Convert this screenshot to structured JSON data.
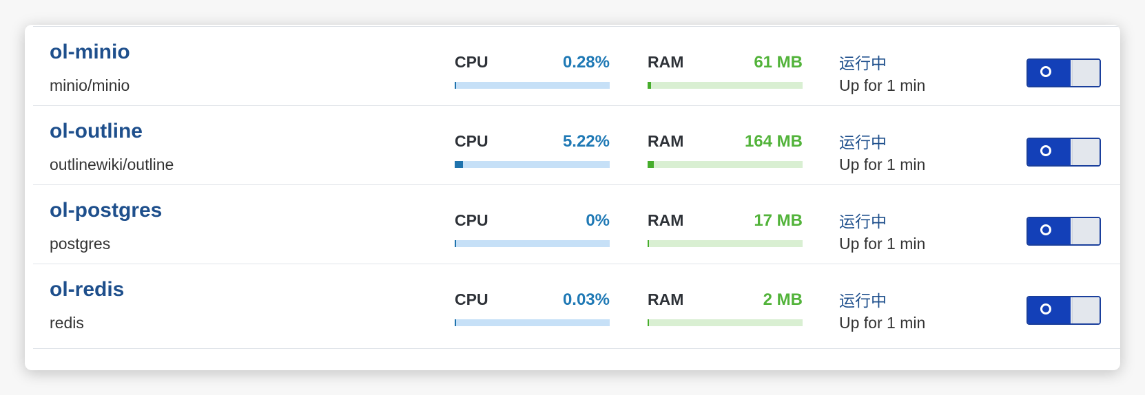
{
  "containers": [
    {
      "name": "ol-minio",
      "image": "minio/minio",
      "cpu_label": "CPU",
      "cpu_value": "0.28%",
      "cpu_fraction": 0.0028,
      "ram_label": "RAM",
      "ram_value": "61 MB",
      "ram_fraction": 0.02,
      "status": "运行中",
      "uptime": "Up for 1 min",
      "enabled": true
    },
    {
      "name": "ol-outline",
      "image": "outlinewiki/outline",
      "cpu_label": "CPU",
      "cpu_value": "5.22%",
      "cpu_fraction": 0.0522,
      "ram_label": "RAM",
      "ram_value": "164 MB",
      "ram_fraction": 0.04,
      "status": "运行中",
      "uptime": "Up for 1 min",
      "enabled": true
    },
    {
      "name": "ol-postgres",
      "image": "postgres",
      "cpu_label": "CPU",
      "cpu_value": "0%",
      "cpu_fraction": 0,
      "ram_label": "RAM",
      "ram_value": "17 MB",
      "ram_fraction": 0.005,
      "status": "运行中",
      "uptime": "Up for 1 min",
      "enabled": true
    },
    {
      "name": "ol-redis",
      "image": "redis",
      "cpu_label": "CPU",
      "cpu_value": "0.03%",
      "cpu_fraction": 0.0003,
      "ram_label": "RAM",
      "ram_value": "2 MB",
      "ram_fraction": 0.001,
      "status": "运行中",
      "uptime": "Up for 1 min",
      "enabled": true
    }
  ],
  "colors": {
    "name": "#1e4f8c",
    "cpu_value": "#1f79b5",
    "cpu_track": "#c6e0f7",
    "cpu_fill": "#1f73ad",
    "ram_value": "#52b33a",
    "ram_track": "#d9efd2",
    "ram_fill": "#46ad2c",
    "toggle_on": "#1340b8"
  }
}
